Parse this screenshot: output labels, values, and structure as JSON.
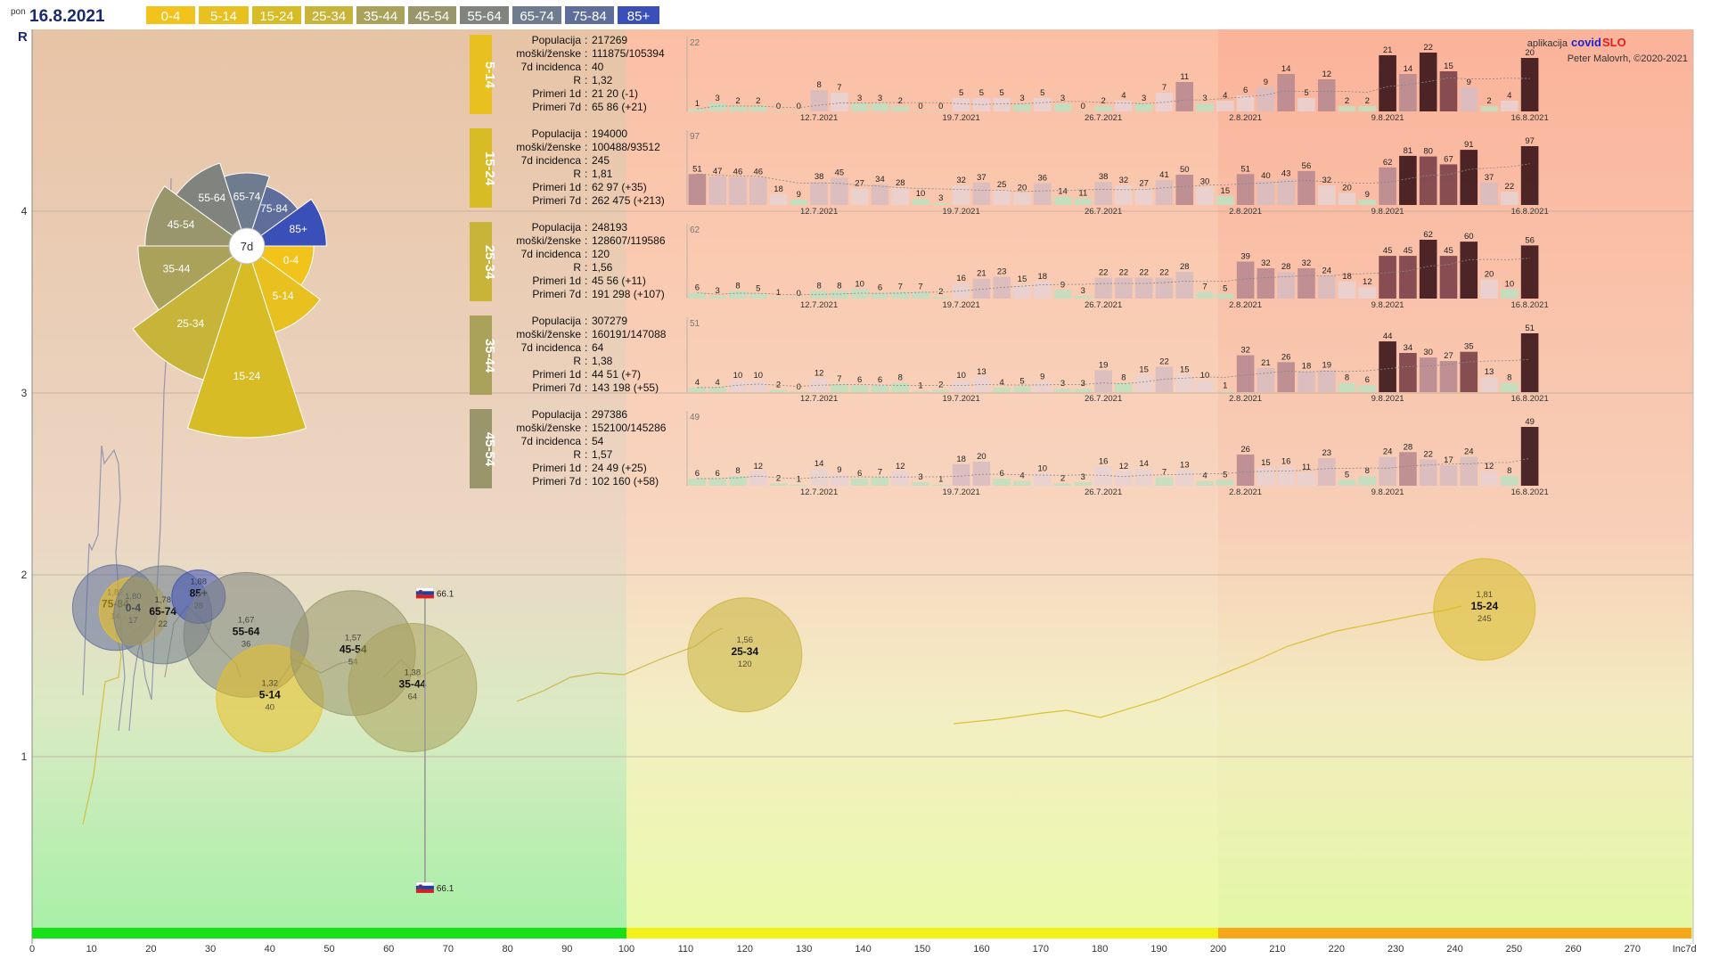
{
  "header": {
    "weekday": "pon",
    "date": "16.8.2021",
    "age_groups": [
      {
        "label": "0-4",
        "color": "#f2c31a",
        "text_color": "#ffffff"
      },
      {
        "label": "5-14",
        "color": "#e8c020",
        "text_color": "#ffffff"
      },
      {
        "label": "15-24",
        "color": "#d8bc25",
        "text_color": "#ffffff"
      },
      {
        "label": "25-34",
        "color": "#c9b43a",
        "text_color": "#ffffff"
      },
      {
        "label": "35-44",
        "color": "#aaa25a",
        "text_color": "#ffffff"
      },
      {
        "label": "45-54",
        "color": "#98966a",
        "text_color": "#ffffff"
      },
      {
        "label": "55-64",
        "color": "#80837e",
        "text_color": "#ffffff"
      },
      {
        "label": "65-74",
        "color": "#6f7b8e",
        "text_color": "#ffffff"
      },
      {
        "label": "75-84",
        "color": "#5f6d9c",
        "text_color": "#ffffff"
      },
      {
        "label": "85+",
        "color": "#3a4fb8",
        "text_color": "#ffffff"
      }
    ]
  },
  "credits": {
    "prefix": "aplikacija",
    "brand_a": "covid",
    "brand_b": "SLO",
    "author": "Peter Malovrh, ©2020-2021"
  },
  "chart_data": [
    {
      "type": "scatter",
      "ylabel": "R",
      "xlabel": "Inc7d",
      "xlim": [
        0,
        280
      ],
      "x_scale": "piecewise: 0-100 and 100-280 on equal widths",
      "ylim": [
        0,
        5
      ],
      "x_ticks": [
        "0",
        "10",
        "20",
        "30",
        "40",
        "50",
        "60",
        "70",
        "80",
        "90",
        "100",
        "110",
        "120",
        "130",
        "140",
        "150",
        "160",
        "170",
        "180",
        "190",
        "200",
        "210",
        "220",
        "230",
        "240",
        "250",
        "260",
        "270",
        "Inc7d"
      ],
      "y_ticks": [
        "1",
        "2",
        "3",
        "4"
      ],
      "zones": [
        {
          "from": 0,
          "to": 100,
          "color": "#16e016"
        },
        {
          "from": 100,
          "to": 200,
          "color": "#f2f21a"
        },
        {
          "from": 200,
          "to": 280,
          "color": "#f6a81a"
        }
      ],
      "bubbles": [
        {
          "group": "75-84",
          "x": 14,
          "r_value": "1,82",
          "inc": "14",
          "y": 1.82,
          "color": "#5f6d9c"
        },
        {
          "group": "0-4",
          "x": 17,
          "r_value": "1,80",
          "inc": "17",
          "y": 1.8,
          "color": "#f2c31a"
        },
        {
          "group": "65-74",
          "x": 22,
          "r_value": "1,78",
          "inc": "22",
          "y": 1.78,
          "color": "#6f7b8e"
        },
        {
          "group": "85+",
          "x": 28,
          "r_value": "1,88",
          "inc": "28",
          "y": 1.88,
          "color": "#3a4fb8"
        },
        {
          "group": "55-64",
          "x": 36,
          "r_value": "1,67",
          "inc": "36",
          "y": 1.67,
          "color": "#80837e"
        },
        {
          "group": "5-14",
          "x": 40,
          "r_value": "1,32",
          "inc": "40",
          "y": 1.32,
          "color": "#e8c020"
        },
        {
          "group": "45-54",
          "x": 54,
          "r_value": "1,57",
          "inc": "54",
          "y": 1.57,
          "color": "#98966a"
        },
        {
          "group": "35-44",
          "x": 64,
          "r_value": "1,38",
          "inc": "64",
          "y": 1.38,
          "color": "#aaa25a"
        },
        {
          "group": "25-34",
          "x": 120,
          "r_value": "1,56",
          "inc": "120",
          "y": 1.56,
          "color": "#c9b43a"
        },
        {
          "group": "15-24",
          "x": 245,
          "r_value": "1,81",
          "inc": "245",
          "y": 1.81,
          "color": "#d8bc25"
        }
      ],
      "slovenia_markers": [
        {
          "label": "66.1",
          "x": 66.1,
          "y": 1.9
        },
        {
          "label": "66.1",
          "x": 66.1,
          "y": 0.28
        }
      ]
    },
    {
      "type": "polar-bar",
      "center_label": "7d",
      "slices": [
        {
          "label": "0-4",
          "value": 17
        },
        {
          "label": "5-14",
          "value": 40
        },
        {
          "label": "15-24",
          "value": 245
        },
        {
          "label": "25-34",
          "value": 120
        },
        {
          "label": "35-44",
          "value": 64
        },
        {
          "label": "45-54",
          "value": 54
        },
        {
          "label": "55-64",
          "value": 36
        },
        {
          "label": "65-74",
          "value": 22
        },
        {
          "label": "75-84",
          "value": 14
        },
        {
          "label": "85+",
          "value": 28
        }
      ]
    },
    {
      "type": "bar",
      "panels": [
        {
          "group": "5-14",
          "color": "#e8c020",
          "stats": [
            {
              "label": "Populacija",
              "value": "217269"
            },
            {
              "label": "moški/ženske",
              "value": "111875/105394"
            },
            {
              "label": "7d incidenca",
              "value": "40"
            },
            {
              "label": "R",
              "value": "1,32"
            },
            {
              "label": "Primeri 1d",
              "value": "21 20 (-1)"
            },
            {
              "label": "Primeri 7d",
              "value": "65 86 (+21)"
            }
          ],
          "ymax_label": "22",
          "values": [
            1,
            3,
            2,
            2,
            0,
            0,
            8,
            7,
            3,
            3,
            2,
            0,
            0,
            5,
            5,
            5,
            3,
            5,
            3,
            0,
            2,
            4,
            3,
            7,
            11,
            3,
            4,
            6,
            9,
            14,
            5,
            12,
            2,
            2,
            21,
            14,
            22,
            15,
            9,
            2,
            4,
            20
          ]
        },
        {
          "group": "15-24",
          "color": "#d8bc25",
          "stats": [
            {
              "label": "Populacija",
              "value": "194000"
            },
            {
              "label": "moški/ženske",
              "value": "100488/93512"
            },
            {
              "label": "7d incidenca",
              "value": "245"
            },
            {
              "label": "R",
              "value": "1,81"
            },
            {
              "label": "Primeri 1d",
              "value": "62 97 (+35)"
            },
            {
              "label": "Primeri 7d",
              "value": "262 475 (+213)"
            }
          ],
          "ymax_label": "97",
          "values": [
            51,
            47,
            46,
            46,
            18,
            9,
            38,
            45,
            27,
            34,
            28,
            10,
            3,
            32,
            37,
            25,
            20,
            36,
            14,
            11,
            38,
            32,
            27,
            41,
            50,
            30,
            15,
            51,
            40,
            43,
            56,
            32,
            20,
            9,
            62,
            81,
            80,
            67,
            91,
            37,
            22,
            97
          ]
        },
        {
          "group": "25-34",
          "color": "#c9b43a",
          "stats": [
            {
              "label": "Populacija",
              "value": "248193"
            },
            {
              "label": "moški/ženske",
              "value": "128607/119586"
            },
            {
              "label": "7d incidenca",
              "value": "120"
            },
            {
              "label": "R",
              "value": "1,56"
            },
            {
              "label": "Primeri 1d",
              "value": "45 56 (+11)"
            },
            {
              "label": "Primeri 7d",
              "value": "191 298 (+107)"
            }
          ],
          "ymax_label": "62",
          "values": [
            6,
            3,
            8,
            5,
            1,
            0,
            8,
            8,
            10,
            6,
            7,
            7,
            2,
            16,
            21,
            23,
            15,
            18,
            9,
            3,
            22,
            22,
            22,
            22,
            28,
            7,
            5,
            39,
            32,
            28,
            32,
            24,
            18,
            12,
            45,
            45,
            62,
            45,
            60,
            20,
            10,
            56
          ]
        },
        {
          "group": "35-44",
          "color": "#aaa25a",
          "stats": [
            {
              "label": "Populacija",
              "value": "307279"
            },
            {
              "label": "moški/ženske",
              "value": "160191/147088"
            },
            {
              "label": "7d incidenca",
              "value": "64"
            },
            {
              "label": "R",
              "value": "1,38"
            },
            {
              "label": "Primeri 1d",
              "value": "44 51 (+7)"
            },
            {
              "label": "Primeri 7d",
              "value": "143 198 (+55)"
            }
          ],
          "ymax_label": "51",
          "values": [
            4,
            4,
            10,
            10,
            2,
            0,
            12,
            7,
            6,
            6,
            8,
            1,
            2,
            10,
            13,
            4,
            5,
            9,
            3,
            3,
            19,
            8,
            15,
            22,
            15,
            10,
            1,
            32,
            21,
            26,
            18,
            19,
            8,
            6,
            44,
            34,
            30,
            27,
            35,
            13,
            8,
            51
          ]
        },
        {
          "group": "45-54",
          "color": "#98966a",
          "stats": [
            {
              "label": "Populacija",
              "value": "297386"
            },
            {
              "label": "moški/ženske",
              "value": "152100/145286"
            },
            {
              "label": "7d incidenca",
              "value": "54"
            },
            {
              "label": "R",
              "value": "1,57"
            },
            {
              "label": "Primeri 1d",
              "value": "24 49 (+25)"
            },
            {
              "label": "Primeri 7d",
              "value": "102 160 (+58)"
            }
          ],
          "ymax_label": "49",
          "values": [
            6,
            6,
            8,
            12,
            2,
            1,
            14,
            9,
            6,
            7,
            12,
            3,
            1,
            18,
            20,
            6,
            4,
            10,
            2,
            3,
            16,
            12,
            14,
            7,
            13,
            4,
            5,
            26,
            15,
            16,
            11,
            23,
            5,
            8,
            24,
            28,
            22,
            17,
            24,
            12,
            8,
            49
          ]
        }
      ],
      "date_labels": [
        {
          "label": "12.7.2021",
          "index": 6
        },
        {
          "label": "19.7.2021",
          "index": 13
        },
        {
          "label": "26.7.2021",
          "index": 20
        },
        {
          "label": "2.8.2021",
          "index": 27
        },
        {
          "label": "9.8.2021",
          "index": 34
        },
        {
          "label": "16.8.2021",
          "index": 41
        }
      ]
    }
  ]
}
